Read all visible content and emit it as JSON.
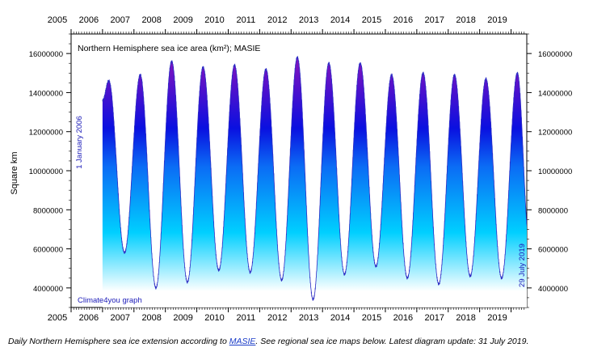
{
  "chart_data": {
    "type": "area",
    "title": "Northern Hemisphere sea ice area (km²); MASIE",
    "ylabel": "Square km",
    "xlim": [
      2005,
      2019.5
    ],
    "ylim": [
      3000000,
      17000000
    ],
    "x_ticks": [
      2005,
      2006,
      2007,
      2008,
      2009,
      2010,
      2011,
      2012,
      2013,
      2014,
      2015,
      2016,
      2017,
      2018,
      2019
    ],
    "y_ticks": [
      4000000,
      6000000,
      8000000,
      10000000,
      12000000,
      14000000,
      16000000
    ],
    "year_labels": [
      "2005",
      "2006",
      "2007",
      "2008",
      "2009",
      "2010",
      "2011",
      "2012",
      "2013",
      "2014",
      "2015",
      "2016",
      "2017",
      "2018",
      "2019"
    ],
    "y_tick_labels": [
      "4000000",
      "6000000",
      "8000000",
      "10000000",
      "12000000",
      "14000000",
      "16000000"
    ],
    "start_label": "1 January 2006",
    "end_label": "29 July 2019",
    "credit": "Climate4you graph",
    "x_start": "2006-01-01",
    "x_end": "2019-07-29",
    "series": [
      {
        "annual_maxima": [
          14600000,
          14900000,
          15600000,
          15300000,
          15400000,
          15200000,
          15800000,
          15500000,
          15500000,
          14900000,
          15000000,
          14900000,
          14700000,
          15000000
        ],
        "annual_minima": [
          5800000,
          4000000,
          4300000,
          4900000,
          4800000,
          4400000,
          3400000,
          4700000,
          5100000,
          4500000,
          4200000,
          4600000,
          4500000
        ]
      }
    ],
    "grid": false,
    "colors": {
      "top": "#7a12c0",
      "upper": "#0a10e0",
      "mid": "#0b6cf5",
      "lower": "#00cfff",
      "bottom": "#ffffff",
      "edge": "#2c2cc4"
    }
  },
  "caption": {
    "before": "Daily Northern Hemisphere sea ice extension according to ",
    "link": "MASIE",
    "after": ". See regional sea ice maps below. Latest diagram update: 31 July 2019."
  }
}
